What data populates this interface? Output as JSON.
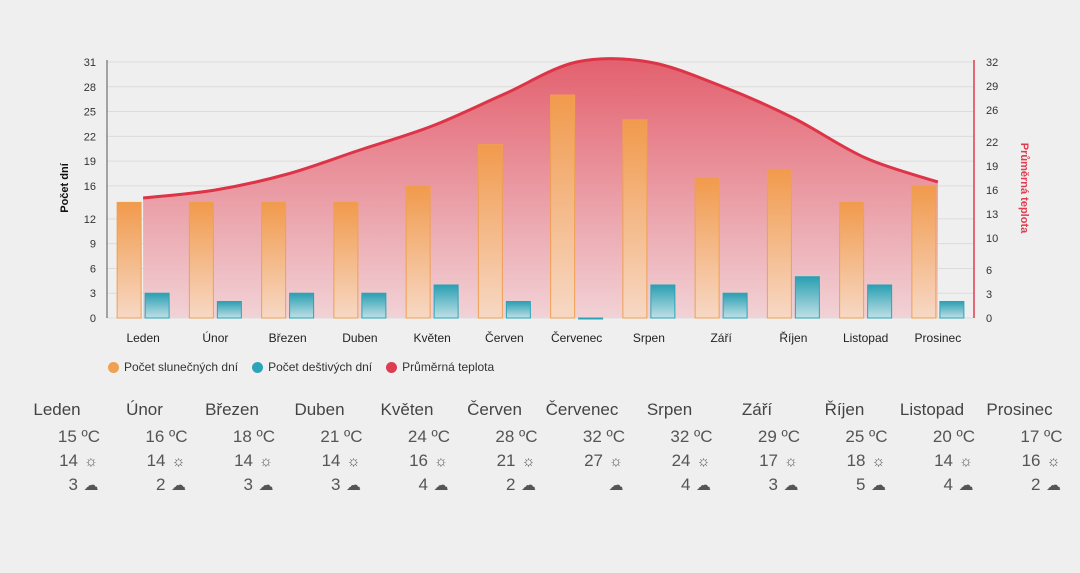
{
  "chart_data": {
    "type": "bar",
    "categories": [
      "Leden",
      "Únor",
      "Březen",
      "Duben",
      "Květen",
      "Červen",
      "Červenec",
      "Srpen",
      "Září",
      "Říjen",
      "Listopad",
      "Prosinec"
    ],
    "series": [
      {
        "name": "Počet slunečných dní",
        "type": "bar",
        "axis": "left",
        "color": "#f0a050",
        "values": [
          14,
          14,
          14,
          14,
          16,
          21,
          27,
          24,
          17,
          18,
          14,
          16
        ]
      },
      {
        "name": "Počet deštivých dní",
        "type": "bar",
        "axis": "left",
        "color": "#2aa5b8",
        "values": [
          3,
          2,
          3,
          3,
          4,
          2,
          0,
          4,
          3,
          5,
          4,
          2
        ]
      },
      {
        "name": "Průměrná teplota",
        "type": "area",
        "axis": "right",
        "color": "#e03c50",
        "values": [
          15,
          16,
          18,
          21,
          24,
          28,
          32,
          32,
          29,
          25,
          20,
          17
        ]
      }
    ],
    "ylabel": "Počet dní",
    "y2label": "Průměrná teplota",
    "yticks": [
      0,
      3,
      6,
      9,
      12,
      16,
      19,
      22,
      25,
      28,
      31
    ],
    "y2ticks": [
      0,
      3,
      6,
      10,
      13,
      16,
      19,
      22,
      26,
      29,
      32
    ],
    "ylim": [
      0,
      31
    ],
    "y2lim": [
      0,
      32
    ],
    "grid": true,
    "legend_position": "bottom-left"
  },
  "legend": {
    "sunny": "Počet slunečných dní",
    "rainy": "Počet deštivých dní",
    "temp": "Průměrná teplota"
  },
  "table": [
    {
      "month": "Leden",
      "temp": "15 ºC",
      "sun": "14",
      "rain": "3"
    },
    {
      "month": "Únor",
      "temp": "16 ºC",
      "sun": "14",
      "rain": "2"
    },
    {
      "month": "Březen",
      "temp": "18 ºC",
      "sun": "14",
      "rain": "3"
    },
    {
      "month": "Duben",
      "temp": "21 ºC",
      "sun": "14",
      "rain": "3"
    },
    {
      "month": "Květen",
      "temp": "24 ºC",
      "sun": "16",
      "rain": "4"
    },
    {
      "month": "Červen",
      "temp": "28 ºC",
      "sun": "21",
      "rain": "2"
    },
    {
      "month": "Červenec",
      "temp": "32 ºC",
      "sun": "27",
      "rain": ""
    },
    {
      "month": "Srpen",
      "temp": "32 ºC",
      "sun": "24",
      "rain": "4"
    },
    {
      "month": "Září",
      "temp": "29 ºC",
      "sun": "17",
      "rain": "3"
    },
    {
      "month": "Říjen",
      "temp": "25 ºC",
      "sun": "18",
      "rain": "5"
    },
    {
      "month": "Listopad",
      "temp": "20 ºC",
      "sun": "14",
      "rain": "4"
    },
    {
      "month": "Prosinec",
      "temp": "17 ºC",
      "sun": "16",
      "rain": "2"
    }
  ],
  "icons": {
    "sun": "sun-icon",
    "rain": "rain-cloud-icon"
  }
}
